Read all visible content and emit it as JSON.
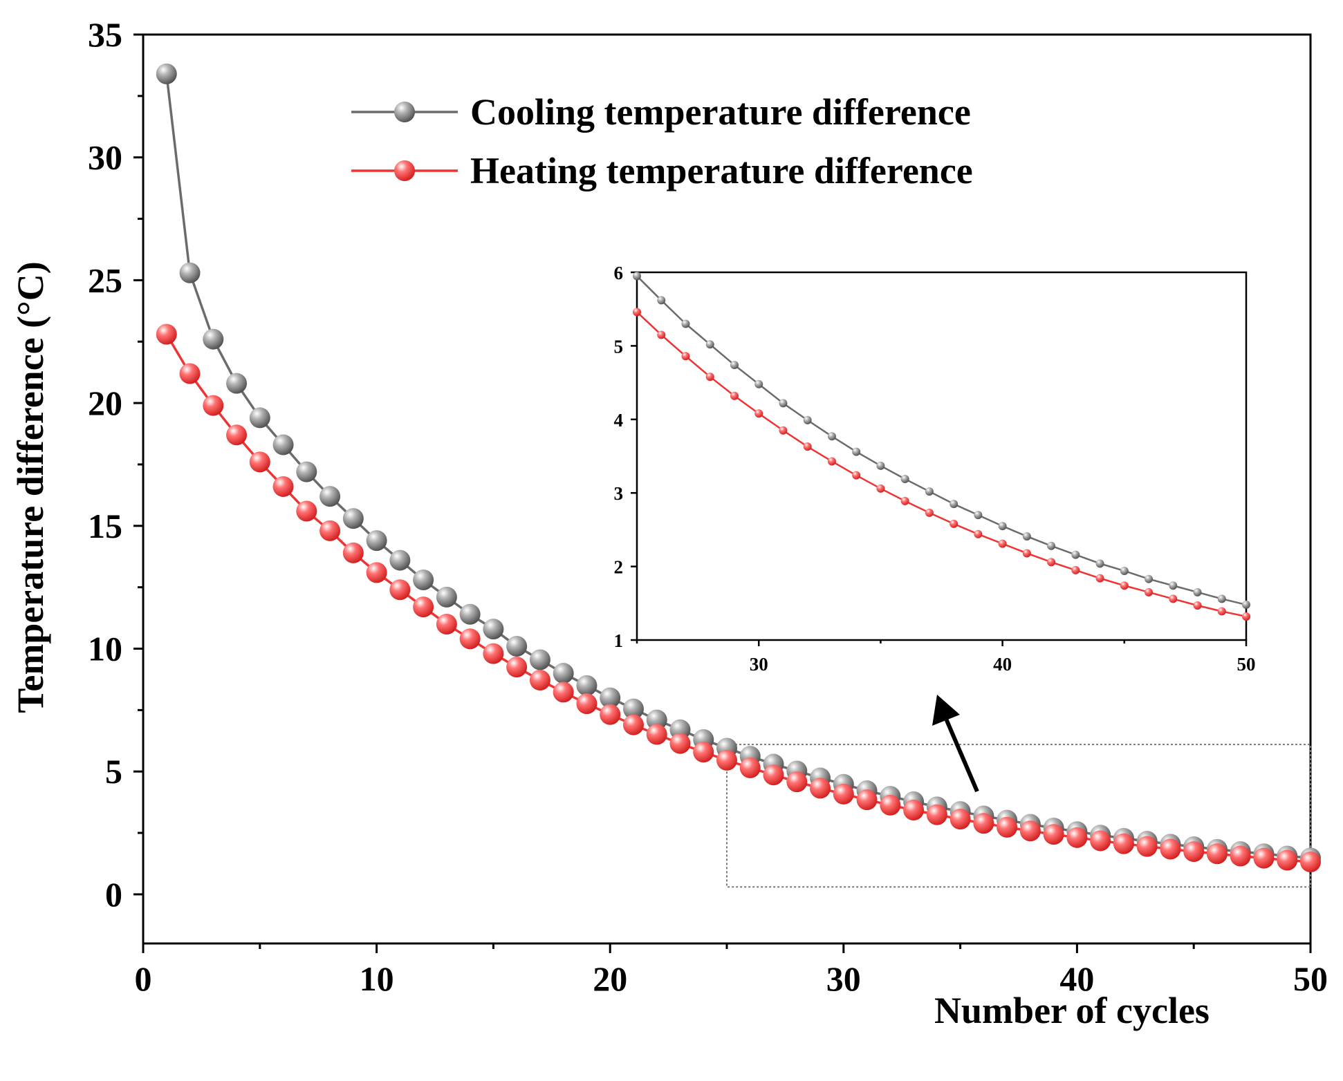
{
  "chart_data": {
    "type": "line",
    "xlabel": "Number of cycles",
    "ylabel": "Temperature difference (°C)",
    "xlim": [
      0,
      50
    ],
    "ylim": [
      -2,
      35
    ],
    "xticks": [
      0,
      10,
      20,
      30,
      40,
      50
    ],
    "yticks": [
      0,
      5,
      10,
      15,
      20,
      25,
      30,
      35
    ],
    "legend_position": "top-center",
    "x": [
      1,
      2,
      3,
      4,
      5,
      6,
      7,
      8,
      9,
      10,
      11,
      12,
      13,
      14,
      15,
      16,
      17,
      18,
      19,
      20,
      21,
      22,
      23,
      24,
      25,
      26,
      27,
      28,
      29,
      30,
      31,
      32,
      33,
      34,
      35,
      36,
      37,
      38,
      39,
      40,
      41,
      42,
      43,
      44,
      45,
      46,
      47,
      48,
      49,
      50
    ],
    "series": [
      {
        "name": "Cooling temperature difference",
        "color": "#6b6b6b",
        "values": [
          33.4,
          25.3,
          22.6,
          20.8,
          19.4,
          18.3,
          17.2,
          16.2,
          15.3,
          14.4,
          13.6,
          12.8,
          12.1,
          11.4,
          10.8,
          10.1,
          9.55,
          9.0,
          8.5,
          8.0,
          7.55,
          7.1,
          6.7,
          6.3,
          5.95,
          5.62,
          5.3,
          5.02,
          4.74,
          4.48,
          4.22,
          3.99,
          3.77,
          3.56,
          3.37,
          3.19,
          3.02,
          2.85,
          2.7,
          2.55,
          2.41,
          2.28,
          2.16,
          2.04,
          1.94,
          1.83,
          1.74,
          1.65,
          1.56,
          1.48
        ]
      },
      {
        "name": "Heating temperature difference",
        "color": "#ee3333",
        "values": [
          22.8,
          21.2,
          19.9,
          18.7,
          17.6,
          16.6,
          15.6,
          14.8,
          13.9,
          13.1,
          12.4,
          11.7,
          11.0,
          10.4,
          9.8,
          9.25,
          8.72,
          8.23,
          7.76,
          7.32,
          6.9,
          6.51,
          6.14,
          5.79,
          5.46,
          5.15,
          4.86,
          4.58,
          4.32,
          4.08,
          3.85,
          3.63,
          3.43,
          3.24,
          3.06,
          2.89,
          2.73,
          2.58,
          2.44,
          2.31,
          2.18,
          2.06,
          1.95,
          1.84,
          1.74,
          1.65,
          1.56,
          1.47,
          1.39,
          1.32
        ]
      }
    ],
    "inset": {
      "xlim": [
        25,
        50
      ],
      "ylim": [
        1,
        6
      ],
      "xticks": [
        30,
        40,
        50
      ],
      "yticks": [
        1,
        2,
        3,
        4,
        5,
        6
      ]
    },
    "zoom_region": {
      "xlim": [
        25,
        50
      ],
      "ylim": [
        0.3,
        6.1
      ]
    }
  }
}
